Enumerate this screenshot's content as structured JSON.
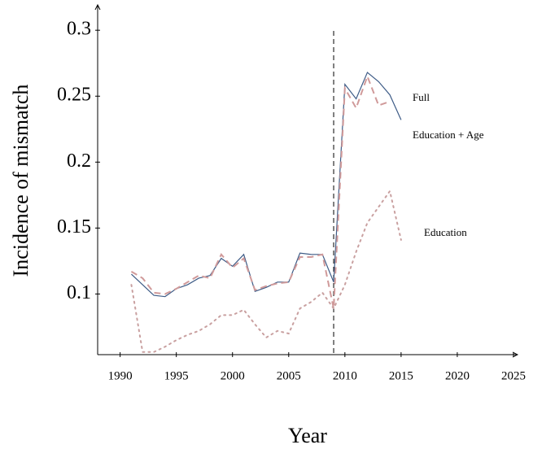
{
  "chart_data": {
    "type": "line",
    "xlabel": "Year",
    "ylabel": "Incidence of mismatch",
    "x": [
      1991,
      1992,
      1993,
      1994,
      1995,
      1996,
      1997,
      1998,
      1999,
      2000,
      2001,
      2002,
      2003,
      2004,
      2005,
      2006,
      2007,
      2008,
      2009,
      2010,
      2011,
      2012,
      2013,
      2014,
      2015
    ],
    "series": [
      {
        "name": "Full",
        "color": "#3d5b86",
        "style": "solid",
        "values": [
          0.115,
          0.107,
          0.099,
          0.098,
          0.104,
          0.107,
          0.112,
          0.114,
          0.127,
          0.121,
          0.13,
          0.102,
          0.105,
          0.109,
          0.109,
          0.131,
          0.13,
          0.13,
          0.109,
          0.259,
          0.248,
          0.268,
          0.261,
          0.251,
          0.232
        ]
      },
      {
        "name": "Education + Age",
        "color": "#d09a9a",
        "style": "dashed",
        "values": [
          0.117,
          0.112,
          0.101,
          0.1,
          0.104,
          0.109,
          0.114,
          0.112,
          0.13,
          0.12,
          0.127,
          0.103,
          0.106,
          0.108,
          0.109,
          0.128,
          0.128,
          0.13,
          0.089,
          0.256,
          0.241,
          0.265,
          0.243,
          0.246,
          null
        ]
      },
      {
        "name": "Education",
        "color": "#c9a0a0",
        "style": "dotted",
        "values": [
          0.107,
          0.056,
          0.056,
          0.06,
          0.065,
          0.069,
          0.072,
          0.077,
          0.084,
          0.084,
          0.088,
          0.077,
          0.067,
          0.072,
          0.07,
          0.089,
          0.094,
          0.101,
          0.089,
          0.107,
          0.132,
          0.154,
          0.166,
          0.178,
          0.141
        ]
      }
    ],
    "vline": 2009,
    "xlim": [
      1988,
      2025
    ],
    "ylim": [
      0.054,
      0.318
    ],
    "xticks": [
      1990,
      1995,
      2000,
      2005,
      2010,
      2015,
      2020,
      2025
    ],
    "yticks": [
      0.1,
      0.15,
      0.2,
      0.25,
      0.3
    ]
  }
}
